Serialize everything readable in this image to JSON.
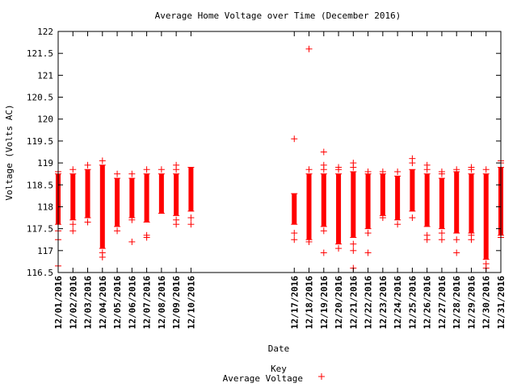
{
  "chart_data": {
    "type": "scatter",
    "title": "Average Home Voltage over Time (December 2016)",
    "xlabel": "Date",
    "ylabel": "Voltage (Volts AC)",
    "ylim": [
      116.5,
      122
    ],
    "yticks": [
      "116.5",
      "117",
      "117.5",
      "118",
      "118.5",
      "119",
      "119.5",
      "120",
      "120.5",
      "121",
      "121.5",
      "122"
    ],
    "x_days": [
      1,
      31
    ],
    "grid": false,
    "legend": {
      "title": "Key",
      "label": "Average Voltage",
      "position": "bottom-center"
    },
    "colors": {
      "series": "#ff0000",
      "axis": "#000000"
    },
    "series": [
      {
        "name": "Average Voltage",
        "days": [
          {
            "day": 1,
            "label": "12/01/2016",
            "box": [
              117.6,
              118.75
            ],
            "outliers": [
              116.65,
              117.25,
              117.45,
              118.8
            ]
          },
          {
            "day": 2,
            "label": "12/02/2016",
            "box": [
              117.7,
              118.75
            ],
            "outliers": [
              117.45,
              117.6,
              118.85
            ]
          },
          {
            "day": 3,
            "label": "12/03/2016",
            "box": [
              117.75,
              118.85
            ],
            "outliers": [
              117.65,
              118.95
            ]
          },
          {
            "day": 4,
            "label": "12/04/2016",
            "box": [
              117.05,
              118.95
            ],
            "outliers": [
              116.85,
              116.95,
              119.05
            ]
          },
          {
            "day": 5,
            "label": "12/05/2016",
            "box": [
              117.55,
              118.65
            ],
            "outliers": [
              117.45,
              118.75
            ]
          },
          {
            "day": 6,
            "label": "12/06/2016",
            "box": [
              117.75,
              118.65
            ],
            "outliers": [
              117.2,
              117.7,
              118.75
            ]
          },
          {
            "day": 7,
            "label": "12/07/2016",
            "box": [
              117.65,
              118.75
            ],
            "outliers": [
              117.3,
              117.35,
              118.85
            ]
          },
          {
            "day": 8,
            "label": "12/08/2016",
            "box": [
              117.85,
              118.75
            ],
            "outliers": [
              118.85
            ]
          },
          {
            "day": 9,
            "label": "12/09/2016",
            "box": [
              117.8,
              118.75
            ],
            "outliers": [
              117.6,
              117.7,
              118.85,
              118.95
            ]
          },
          {
            "day": 10,
            "label": "12/10/2016",
            "box": [
              117.9,
              118.9
            ],
            "outliers": [
              117.6,
              117.75
            ]
          },
          {
            "day": 17,
            "label": "12/17/2016",
            "box": [
              117.6,
              118.3
            ],
            "outliers": [
              117.25,
              117.4,
              119.55
            ]
          },
          {
            "day": 18,
            "label": "12/18/2016",
            "box": [
              117.25,
              118.75
            ],
            "outliers": [
              117.2,
              118.85,
              121.6
            ]
          },
          {
            "day": 19,
            "label": "12/19/2016",
            "box": [
              117.55,
              118.75
            ],
            "outliers": [
              116.95,
              117.45,
              118.85,
              118.95,
              119.25
            ]
          },
          {
            "day": 20,
            "label": "12/20/2016",
            "box": [
              117.15,
              118.75
            ],
            "outliers": [
              117.05,
              118.85,
              118.9
            ]
          },
          {
            "day": 21,
            "label": "12/21/2016",
            "box": [
              117.3,
              118.8
            ],
            "outliers": [
              116.6,
              117.0,
              117.15,
              118.9,
              119.0
            ]
          },
          {
            "day": 22,
            "label": "12/22/2016",
            "box": [
              117.5,
              118.75
            ],
            "outliers": [
              116.95,
              117.4,
              118.8
            ]
          },
          {
            "day": 23,
            "label": "12/23/2016",
            "box": [
              117.8,
              118.75
            ],
            "outliers": [
              117.75,
              118.8
            ]
          },
          {
            "day": 24,
            "label": "12/24/2016",
            "box": [
              117.7,
              118.7
            ],
            "outliers": [
              117.6,
              118.8
            ]
          },
          {
            "day": 25,
            "label": "12/25/2016",
            "box": [
              117.9,
              118.85
            ],
            "outliers": [
              117.75,
              119.0,
              119.1
            ]
          },
          {
            "day": 26,
            "label": "12/26/2016",
            "box": [
              117.55,
              118.75
            ],
            "outliers": [
              117.25,
              117.35,
              118.85,
              118.95
            ]
          },
          {
            "day": 27,
            "label": "12/27/2016",
            "box": [
              117.5,
              118.65
            ],
            "outliers": [
              117.25,
              117.4,
              118.75,
              118.8
            ]
          },
          {
            "day": 28,
            "label": "12/28/2016",
            "box": [
              117.4,
              118.8
            ],
            "outliers": [
              116.95,
              117.25,
              118.85
            ]
          },
          {
            "day": 29,
            "label": "12/29/2016",
            "box": [
              117.4,
              118.75
            ],
            "outliers": [
              117.25,
              117.35,
              118.85,
              118.9
            ]
          },
          {
            "day": 30,
            "label": "12/30/2016",
            "box": [
              116.8,
              118.75
            ],
            "outliers": [
              116.6,
              116.7,
              118.85
            ]
          },
          {
            "day": 31,
            "label": "12/31/2016",
            "box": [
              117.35,
              118.9
            ],
            "outliers": [
              117.3,
              119.0,
              119.05
            ]
          }
        ]
      }
    ]
  }
}
